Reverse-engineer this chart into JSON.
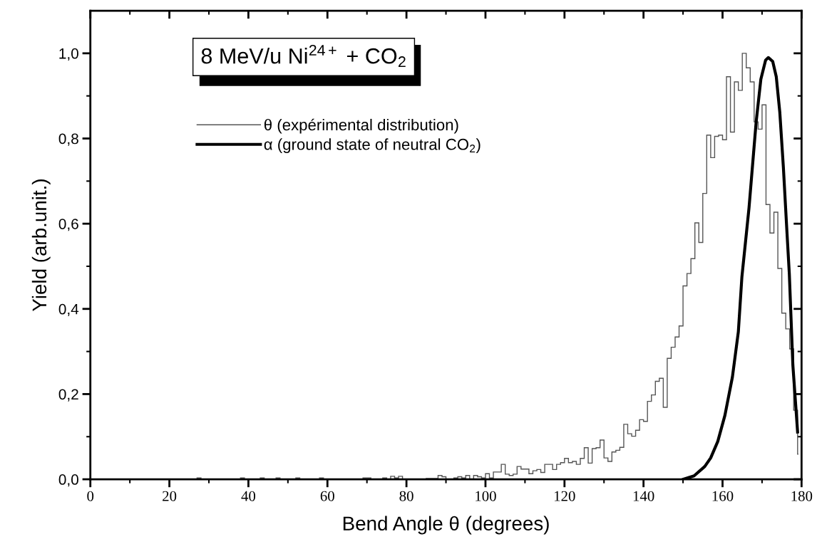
{
  "chart_data": {
    "type": "histogram",
    "title": "8 MeV/u Ni$^{24+}$ + CO$_{2}$",
    "xlabel": "Bend Angle θ (degrees)",
    "ylabel": "Yield (arb.unit.)",
    "xlim": [
      0,
      180
    ],
    "xticks": [
      0,
      20,
      40,
      60,
      80,
      100,
      120,
      140,
      160,
      180
    ],
    "ylim": [
      0,
      1.1
    ],
    "yticks": [
      {
        "value": 0,
        "label": "0,0"
      },
      {
        "value": 0.2,
        "label": "0,2"
      },
      {
        "value": 0.4,
        "label": "0,4"
      },
      {
        "value": 0.6,
        "label": "0,6"
      },
      {
        "value": 0.8,
        "label": "0,8"
      },
      {
        "value": 1.0,
        "label": "1,0"
      }
    ],
    "legend": "top left",
    "series": [
      {
        "name": "θ (expérimental distribution)",
        "color": "#555555",
        "bins": [
          0,
          27,
          28,
          38,
          39,
          43,
          44,
          47,
          48,
          52,
          53,
          58,
          59,
          69,
          71,
          74,
          75,
          76,
          77,
          78,
          79,
          85,
          88,
          89,
          90,
          92,
          93,
          94,
          95,
          96,
          97,
          98,
          99,
          100,
          101,
          102,
          104,
          105,
          106,
          107,
          108,
          109,
          111,
          112,
          113,
          114,
          115,
          117,
          118,
          119,
          120,
          121,
          122,
          123,
          124,
          125,
          126,
          127,
          128,
          129,
          130,
          131,
          132,
          133,
          134,
          135,
          136,
          137,
          138,
          139,
          140,
          141,
          142,
          143,
          144,
          145,
          146,
          147,
          148,
          149,
          150,
          151,
          152,
          153,
          154,
          155,
          156,
          157,
          158,
          159,
          160,
          161,
          162,
          163,
          164,
          165,
          166,
          167,
          168,
          169,
          170,
          171,
          172,
          173,
          174,
          175,
          176,
          177,
          178,
          179,
          179.2
        ],
        "values": [
          0,
          0.003,
          0,
          0.003,
          0,
          0.003,
          0,
          0.003,
          0,
          0.003,
          0,
          0.003,
          0,
          0.003,
          0,
          0.003,
          0,
          0.007,
          0.003,
          0.007,
          0,
          0.002,
          0.009,
          0.006,
          0,
          0.003,
          0.006,
          0.003,
          0.009,
          0,
          0.009,
          0.006,
          0.003,
          0.013,
          0.003,
          0.017,
          0.035,
          0.012,
          0.009,
          0.012,
          0.03,
          0.024,
          0.013,
          0.02,
          0.023,
          0.016,
          0.035,
          0.023,
          0.035,
          0.039,
          0.049,
          0.039,
          0.042,
          0.035,
          0.049,
          0.074,
          0.038,
          0.072,
          0.074,
          0.092,
          0.05,
          0.042,
          0.064,
          0.068,
          0.075,
          0.129,
          0.107,
          0.101,
          0.115,
          0.14,
          0.136,
          0.183,
          0.198,
          0.23,
          0.237,
          0.169,
          0.284,
          0.31,
          0.334,
          0.36,
          0.454,
          0.483,
          0.518,
          0.602,
          0.556,
          0.671,
          0.808,
          0.755,
          0.805,
          0.808,
          0.797,
          0.945,
          0.815,
          0.933,
          0.913,
          1.0,
          0.966,
          0.933,
          0.839,
          0.822,
          0.879,
          0.645,
          0.578,
          0.627,
          0.495,
          0.39,
          0.353,
          0.306,
          0.162,
          0.059
        ]
      },
      {
        "type": "line",
        "name": "α (ground state of neutral CO$_{2}$)",
        "color": "#000000",
        "x": [
          150.1,
          152.8,
          155.5,
          157.0,
          158.8,
          160.6,
          162.5,
          164.0,
          164.9,
          166.7,
          168.5,
          169.7,
          170.9,
          171.6,
          172.7,
          173.6,
          174.5,
          175.4,
          176.3,
          176.9,
          177.8,
          179.0
        ],
        "values": [
          0.0,
          0.008,
          0.03,
          0.05,
          0.089,
          0.15,
          0.24,
          0.346,
          0.475,
          0.637,
          0.838,
          0.939,
          0.984,
          0.99,
          0.981,
          0.945,
          0.861,
          0.732,
          0.581,
          0.483,
          0.268,
          0.111
        ]
      }
    ]
  }
}
